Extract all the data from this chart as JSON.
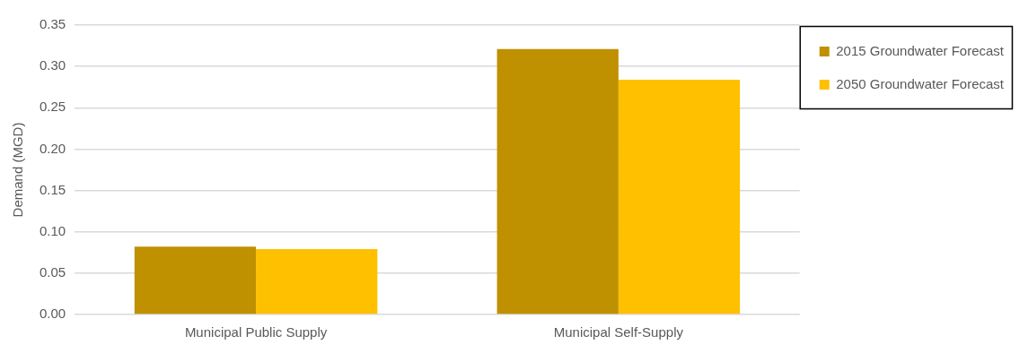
{
  "chart_data": {
    "type": "bar",
    "ylabel": "Demand (MGD)",
    "categories": [
      "Municipal Public Supply",
      "Municipal Self-Supply"
    ],
    "series": [
      {
        "name": "2015 Groundwater Forecast",
        "color": "#bf9000",
        "values": [
          0.082,
          0.321
        ]
      },
      {
        "name": "2050 Groundwater Forecast",
        "color": "#ffc000",
        "values": [
          0.079,
          0.284
        ]
      }
    ],
    "ylim": [
      0,
      0.35
    ],
    "yticks": [
      {
        "value": 0,
        "label": "0.00"
      },
      {
        "value": 0.05,
        "label": "0.05"
      },
      {
        "value": 0.1,
        "label": "0.10"
      },
      {
        "value": 0.15,
        "label": "0.15"
      },
      {
        "value": 0.2,
        "label": "0.20"
      },
      {
        "value": 0.25,
        "label": "0.25"
      },
      {
        "value": 0.3,
        "label": "0.30"
      },
      {
        "value": 0.35,
        "label": "0.35"
      }
    ],
    "grid": "y",
    "legend": "top right"
  }
}
